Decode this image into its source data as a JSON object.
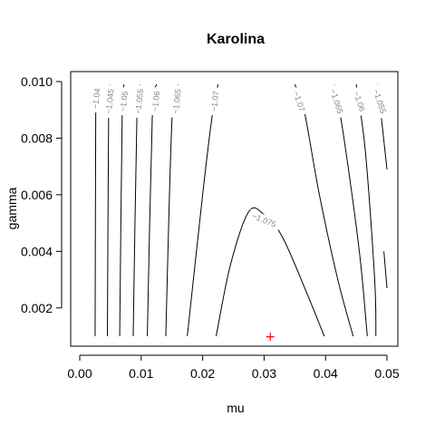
{
  "chart_data": {
    "type": "contour",
    "title": "Karolina",
    "xlabel": "mu",
    "ylabel": "gamma",
    "xlim": [
      0.0,
      0.05
    ],
    "ylim": [
      0.001,
      0.01
    ],
    "xticks": [
      "0.00",
      "0.01",
      "0.02",
      "0.03",
      "0.04",
      "0.05"
    ],
    "xtick_values": [
      0.0,
      0.01,
      0.02,
      0.03,
      0.04,
      0.05
    ],
    "yticks": [
      "0.002",
      "0.004",
      "0.006",
      "0.008",
      "0.010"
    ],
    "ytick_values": [
      0.002,
      0.004,
      0.006,
      0.008,
      0.01
    ],
    "grid": false,
    "contours": [
      {
        "level": "-1.04",
        "points": [
          [
            0.0025,
            0.001
          ],
          [
            0.0026,
            0.0087
          ],
          [
            0.0027,
            0.0099
          ]
        ],
        "label_at": [
          0.0027,
          0.0094
        ]
      },
      {
        "level": "-1.045",
        "points": [
          [
            0.0045,
            0.001
          ],
          [
            0.0047,
            0.0088
          ],
          [
            0.0049,
            0.0099
          ]
        ],
        "label_at": [
          0.0049,
          0.0093
        ]
      },
      {
        "level": "-1.05",
        "points": [
          [
            0.0065,
            0.001
          ],
          [
            0.0069,
            0.0087
          ],
          [
            0.0072,
            0.0099
          ]
        ],
        "label_at": [
          0.0072,
          0.0093
        ]
      },
      {
        "level": "-1.055",
        "points": [
          [
            0.0087,
            0.001
          ],
          [
            0.0093,
            0.0087
          ],
          [
            0.0098,
            0.0099
          ]
        ],
        "label_at": [
          0.0097,
          0.0093
        ]
      },
      {
        "level": "-1.06",
        "points": [
          [
            0.011,
            0.001
          ],
          [
            0.0118,
            0.0087
          ],
          [
            0.0125,
            0.0099
          ]
        ],
        "label_at": [
          0.0124,
          0.0093
        ]
      },
      {
        "level": "-1.065",
        "points": [
          [
            0.014,
            0.001
          ],
          [
            0.015,
            0.0086
          ],
          [
            0.016,
            0.0099
          ]
        ],
        "label_at": [
          0.0158,
          0.0093
        ]
      },
      {
        "level": "-1.07",
        "points": [
          [
            0.0175,
            0.001
          ],
          [
            0.02,
            0.006
          ],
          [
            0.0215,
            0.0087
          ],
          [
            0.0225,
            0.0099
          ]
        ],
        "label_at": [
          0.022,
          0.0093
        ]
      },
      {
        "level": "-1.07",
        "points": [
          [
            0.035,
            0.0099
          ],
          [
            0.0365,
            0.009
          ],
          [
            0.039,
            0.006
          ],
          [
            0.042,
            0.003
          ],
          [
            0.0445,
            0.001
          ]
        ],
        "label_at": [
          0.0357,
          0.0093
        ]
      },
      {
        "level": "-1.075",
        "points": [
          [
            0.0222,
            0.001
          ],
          [
            0.0245,
            0.0035
          ],
          [
            0.0275,
            0.0054
          ],
          [
            0.03,
            0.0053
          ],
          [
            0.033,
            0.0045
          ],
          [
            0.037,
            0.0025
          ],
          [
            0.0398,
            0.001
          ]
        ],
        "label_at": [
          0.03,
          0.0051
        ]
      },
      {
        "level": "-1.065",
        "points": [
          [
            0.0415,
            0.0099
          ],
          [
            0.043,
            0.008
          ],
          [
            0.0455,
            0.004
          ],
          [
            0.0468,
            0.001
          ]
        ],
        "label_at": [
          0.0418,
          0.0093
        ]
      },
      {
        "level": "-1.06",
        "points": [
          [
            0.045,
            0.0099
          ],
          [
            0.0465,
            0.0075
          ],
          [
            0.048,
            0.003
          ],
          [
            0.0482,
            0.001
          ]
        ],
        "label_at": [
          0.0455,
          0.0093
        ]
      },
      {
        "level": "-1.055",
        "points": [
          [
            0.0485,
            0.0099
          ],
          [
            0.0492,
            0.0085
          ],
          [
            0.05,
            0.0069
          ]
        ],
        "label_at": [
          0.0488,
          0.0093
        ]
      },
      {
        "level": "-1.055",
        "points": [
          [
            0.05,
            0.0027
          ],
          [
            0.0495,
            0.004
          ]
        ],
        "label_at": null
      }
    ],
    "marker": {
      "x": 0.031,
      "y": 0.001,
      "symbol": "+",
      "color": "#ff0000"
    }
  }
}
